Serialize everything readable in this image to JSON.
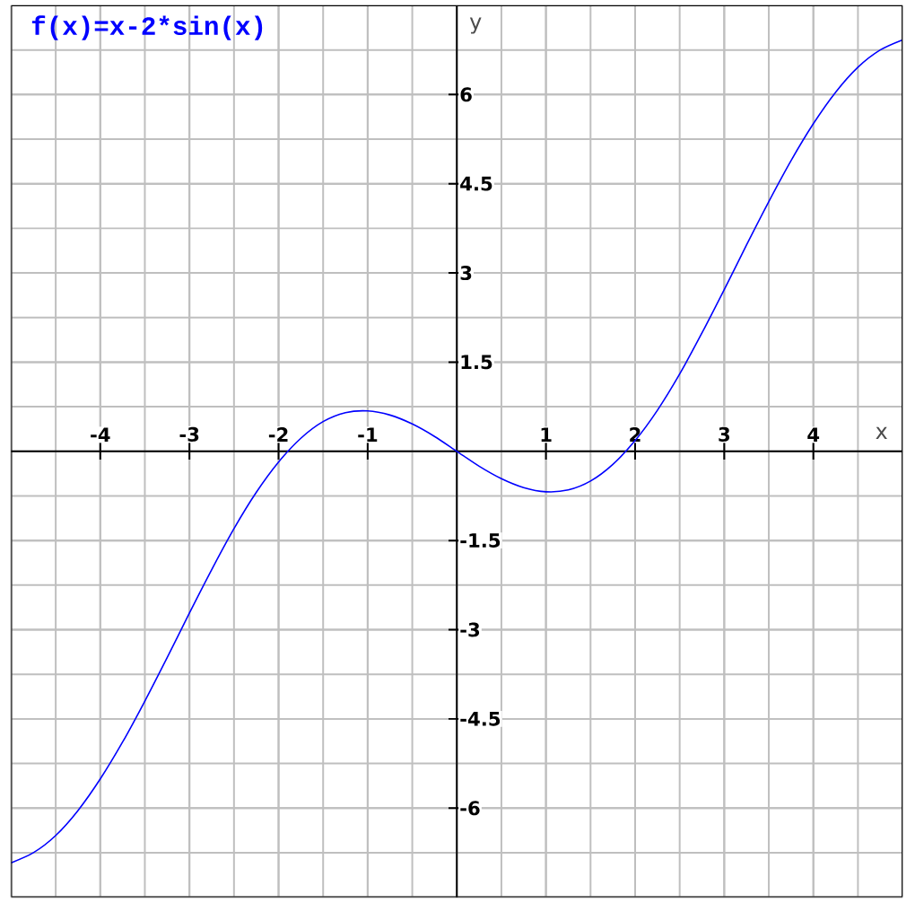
{
  "chart_data": {
    "type": "line",
    "title": "f(x)=x-2*sin(x)",
    "xlabel": "x",
    "ylabel": "y",
    "x": [
      -5,
      -4.75,
      -4.5,
      -4.25,
      -4,
      -3.75,
      -3.5,
      -3.25,
      -3,
      -2.75,
      -2.5,
      -2.25,
      -2,
      -1.75,
      -1.5,
      -1.25,
      -1,
      -0.75,
      -0.5,
      -0.25,
      0,
      0.25,
      0.5,
      0.75,
      1,
      1.25,
      1.5,
      1.75,
      2,
      2.25,
      2.5,
      2.75,
      3,
      3.25,
      3.5,
      3.75,
      4,
      4.25,
      4.5,
      4.75,
      5
    ],
    "series": [
      {
        "color": "#0000ff",
        "values": [
          -6.92,
          -6.75,
          -6.46,
          -6.04,
          -5.51,
          -4.89,
          -4.2,
          -3.47,
          -2.72,
          -1.99,
          -1.3,
          -0.69,
          -0.18,
          0.22,
          0.5,
          0.65,
          0.68,
          0.61,
          0.46,
          0.25,
          0,
          -0.25,
          -0.46,
          -0.61,
          -0.68,
          -0.65,
          -0.5,
          -0.22,
          0.18,
          0.69,
          1.3,
          1.99,
          2.72,
          3.47,
          4.2,
          4.89,
          5.51,
          6.04,
          6.46,
          6.75,
          6.92
        ]
      }
    ],
    "xlim": [
      -5,
      5
    ],
    "ylim": [
      -7.5,
      7.5
    ],
    "xticks": [
      -4,
      -3,
      -2,
      -1,
      1,
      2,
      3,
      4
    ],
    "yticks": [
      -6,
      -4.5,
      -3,
      -1.5,
      1.5,
      3,
      4.5,
      6
    ],
    "grid": true
  }
}
